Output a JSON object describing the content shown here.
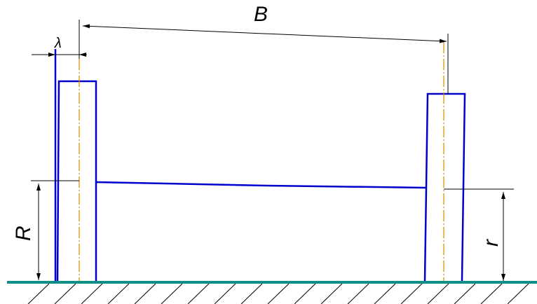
{
  "labels": {
    "track_width": "B",
    "wheel_offset": "λ",
    "left_radius": "R",
    "right_radius": "r"
  },
  "colors": {
    "outline": "#0000cc",
    "centerline": "#e08a00",
    "ground": "#0f8f86",
    "dimension": "#000000",
    "hatch": "#000000",
    "background": "#ffffff"
  }
}
